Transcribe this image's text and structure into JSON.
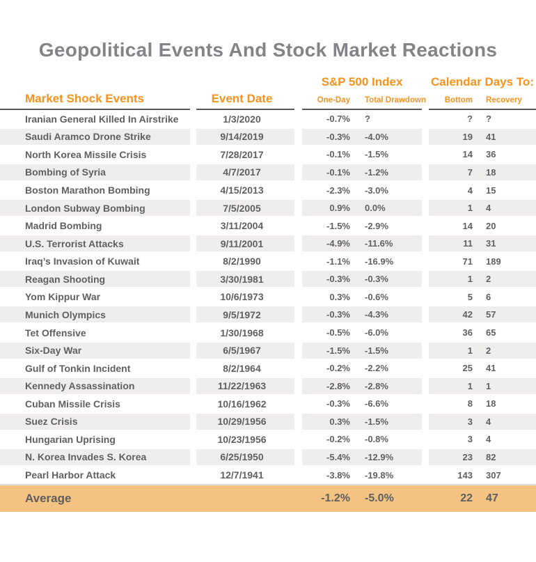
{
  "title": "Geopolitical Events And Stock Market Reactions",
  "chart_data": {
    "type": "table",
    "title": "Geopolitical Events And Stock Market Reactions",
    "group_headers": {
      "sp500": "S&P 500 Index",
      "calendar": "Calendar Days To:"
    },
    "headers": {
      "events": "Market Shock Events",
      "date": "Event Date",
      "one_day": "One-Day",
      "total_drawdown": "Total Drawdown",
      "bottom": "Bottom",
      "recovery": "Recovery"
    },
    "rows": [
      {
        "event": "Iranian General Killed In Airstrike",
        "date": "1/3/2020",
        "one_day": "-0.7%",
        "total_drawdown": "?",
        "bottom": "?",
        "recovery": "?"
      },
      {
        "event": "Saudi Aramco Drone Strike",
        "date": "9/14/2019",
        "one_day": "-0.3%",
        "total_drawdown": "-4.0%",
        "bottom": "19",
        "recovery": "41"
      },
      {
        "event": "North Korea Missile Crisis",
        "date": "7/28/2017",
        "one_day": "-0.1%",
        "total_drawdown": "-1.5%",
        "bottom": "14",
        "recovery": "36"
      },
      {
        "event": "Bombing of Syria",
        "date": "4/7/2017",
        "one_day": "-0.1%",
        "total_drawdown": "-1.2%",
        "bottom": "7",
        "recovery": "18"
      },
      {
        "event": "Boston Marathon Bombing",
        "date": "4/15/2013",
        "one_day": "-2.3%",
        "total_drawdown": "-3.0%",
        "bottom": "4",
        "recovery": "15"
      },
      {
        "event": "London Subway Bombing",
        "date": "7/5/2005",
        "one_day": "0.9%",
        "total_drawdown": "0.0%",
        "bottom": "1",
        "recovery": "4"
      },
      {
        "event": "Madrid Bombing",
        "date": "3/11/2004",
        "one_day": "-1.5%",
        "total_drawdown": "-2.9%",
        "bottom": "14",
        "recovery": "20"
      },
      {
        "event": "U.S. Terrorist Attacks",
        "date": "9/11/2001",
        "one_day": "-4.9%",
        "total_drawdown": "-11.6%",
        "bottom": "11",
        "recovery": "31"
      },
      {
        "event": "Iraq’s Invasion of Kuwait",
        "date": "8/2/1990",
        "one_day": "-1.1%",
        "total_drawdown": "-16.9%",
        "bottom": "71",
        "recovery": "189"
      },
      {
        "event": "Reagan Shooting",
        "date": "3/30/1981",
        "one_day": "-0.3%",
        "total_drawdown": "-0.3%",
        "bottom": "1",
        "recovery": "2"
      },
      {
        "event": "Yom Kippur War",
        "date": "10/6/1973",
        "one_day": "0.3%",
        "total_drawdown": "-0.6%",
        "bottom": "5",
        "recovery": "6"
      },
      {
        "event": "Munich Olympics",
        "date": "9/5/1972",
        "one_day": "-0.3%",
        "total_drawdown": "-4.3%",
        "bottom": "42",
        "recovery": "57"
      },
      {
        "event": "Tet Offensive",
        "date": "1/30/1968",
        "one_day": "-0.5%",
        "total_drawdown": "-6.0%",
        "bottom": "36",
        "recovery": "65"
      },
      {
        "event": "Six-Day War",
        "date": "6/5/1967",
        "one_day": "-1.5%",
        "total_drawdown": "-1.5%",
        "bottom": "1",
        "recovery": "2"
      },
      {
        "event": "Gulf of Tonkin Incident",
        "date": "8/2/1964",
        "one_day": "-0.2%",
        "total_drawdown": "-2.2%",
        "bottom": "25",
        "recovery": "41"
      },
      {
        "event": "Kennedy Assassination",
        "date": "11/22/1963",
        "one_day": "-2.8%",
        "total_drawdown": "-2.8%",
        "bottom": "1",
        "recovery": "1"
      },
      {
        "event": "Cuban Missile Crisis",
        "date": "10/16/1962",
        "one_day": "-0.3%",
        "total_drawdown": "-6.6%",
        "bottom": "8",
        "recovery": "18"
      },
      {
        "event": "Suez Crisis",
        "date": "10/29/1956",
        "one_day": "0.3%",
        "total_drawdown": "-1.5%",
        "bottom": "3",
        "recovery": "4"
      },
      {
        "event": "Hungarian Uprising",
        "date": "10/23/1956",
        "one_day": "-0.2%",
        "total_drawdown": "-0.8%",
        "bottom": "3",
        "recovery": "4"
      },
      {
        "event": "N. Korea Invades S. Korea",
        "date": "6/25/1950",
        "one_day": "-5.4%",
        "total_drawdown": "-12.9%",
        "bottom": "23",
        "recovery": "82"
      },
      {
        "event": "Pearl Harbor Attack",
        "date": "12/7/1941",
        "one_day": "-3.8%",
        "total_drawdown": "-19.8%",
        "bottom": "143",
        "recovery": "307"
      }
    ],
    "average": {
      "label": "Average",
      "one_day": "-1.2%",
      "total_drawdown": "-5.0%",
      "bottom": "22",
      "recovery": "47"
    }
  },
  "colors": {
    "accent_orange": "#f6921e",
    "average_band": "#f5c381",
    "row_stripe": "#efeeec",
    "title_gray": "#828487",
    "text_gray": "#5f6062",
    "header_rule": "#595a5c"
  }
}
